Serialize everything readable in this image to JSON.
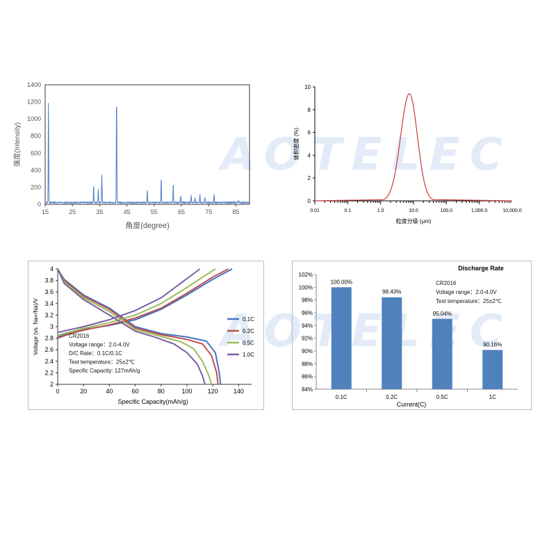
{
  "watermark": {
    "text": "AOTELEC"
  },
  "chart_data": [
    {
      "type": "line",
      "subtype": "xrd",
      "title": "",
      "xlabel": "",
      "ylabel": "",
      "xlabel_text": "角度(degree)",
      "ylabel_text": "强度(Intensity)",
      "xlim": [
        15,
        90
      ],
      "ylim": [
        0,
        1400
      ],
      "xticks": [
        15,
        25,
        35,
        45,
        55,
        65,
        75,
        85
      ],
      "yticks": [
        0,
        200,
        400,
        600,
        800,
        1000,
        1200,
        1400
      ],
      "color": "#4a7cc4",
      "baseline": 15,
      "peaks": [
        {
          "x": 16.2,
          "y": 1170
        },
        {
          "x": 32.8,
          "y": 210
        },
        {
          "x": 34.5,
          "y": 160
        },
        {
          "x": 35.8,
          "y": 330
        },
        {
          "x": 41.2,
          "y": 1250
        },
        {
          "x": 52.5,
          "y": 145
        },
        {
          "x": 57.6,
          "y": 295
        },
        {
          "x": 62.0,
          "y": 225
        },
        {
          "x": 64.8,
          "y": 85
        },
        {
          "x": 68.6,
          "y": 90
        },
        {
          "x": 70.0,
          "y": 55
        },
        {
          "x": 71.8,
          "y": 100
        },
        {
          "x": 73.6,
          "y": 65
        },
        {
          "x": 77.0,
          "y": 100
        },
        {
          "x": 86.0,
          "y": 30
        }
      ]
    },
    {
      "type": "line",
      "subtype": "particle-size",
      "title": "",
      "xlabel": "",
      "ylabel": "",
      "xlabel_text": "粒度分级 (μm)",
      "ylabel_text": "体积密度 (%)",
      "xscale": "log",
      "xlim": [
        0.01,
        10000
      ],
      "ylim": [
        0,
        10
      ],
      "xtick_values": [
        0.01,
        0.1,
        1,
        10,
        100,
        1000,
        10000
      ],
      "xtick_labels": [
        "0.01",
        "0.1",
        "1.0",
        "10.0",
        "100.0",
        "1,000.0",
        "10,000.0"
      ],
      "yticks": [
        0,
        2,
        4,
        6,
        8,
        10
      ],
      "color": "#c83a3a",
      "peak_x": 7.5,
      "peak_y": 9.4,
      "start_x": 1.2,
      "end_x": 40
    },
    {
      "type": "line",
      "subtype": "charge-discharge",
      "title": "",
      "xlabel": "Specific Capacity(mAh/g)",
      "ylabel": "Voltage (vs. Na+/Na)/V",
      "xlim": [
        0,
        150
      ],
      "ylim": [
        2,
        4
      ],
      "xticks": [
        0,
        20,
        40,
        60,
        80,
        100,
        120,
        140
      ],
      "yticks": [
        "2",
        "2.2",
        "2.4",
        "2.6",
        "2.8",
        "3",
        "3.2",
        "3.4",
        "3.6",
        "3.8",
        "4"
      ],
      "legend_position": "right",
      "annotations": [
        "CR2016",
        "Voltage range：2.0-4.0V",
        "D/C Rate：0.1C/0.1C",
        "Test temperature：25±2℃",
        "Specific Capacity: 127mAh/g"
      ],
      "series": [
        {
          "name": "0.1C",
          "color": "#4472c4",
          "charge": [
            [
              0,
              2.82
            ],
            [
              10,
              2.9
            ],
            [
              20,
              2.95
            ],
            [
              40,
              3.02
            ],
            [
              60,
              3.12
            ],
            [
              80,
              3.3
            ],
            [
              100,
              3.55
            ],
            [
              120,
              3.82
            ],
            [
              135,
              4.0
            ]
          ],
          "discharge": [
            [
              0,
              4.0
            ],
            [
              5,
              3.82
            ],
            [
              20,
              3.55
            ],
            [
              40,
              3.32
            ],
            [
              60,
              3.0
            ],
            [
              80,
              2.88
            ],
            [
              100,
              2.82
            ],
            [
              115,
              2.75
            ],
            [
              122,
              2.55
            ],
            [
              125,
              2.2
            ],
            [
              126,
              2.0
            ]
          ]
        },
        {
          "name": "0.2C",
          "color": "#c0504d",
          "charge": [
            [
              0,
              2.8
            ],
            [
              10,
              2.88
            ],
            [
              20,
              2.94
            ],
            [
              40,
              3.03
            ],
            [
              60,
              3.15
            ],
            [
              80,
              3.32
            ],
            [
              100,
              3.58
            ],
            [
              120,
              3.86
            ],
            [
              132,
              4.0
            ]
          ],
          "discharge": [
            [
              0,
              4.0
            ],
            [
              5,
              3.8
            ],
            [
              20,
              3.53
            ],
            [
              40,
              3.3
            ],
            [
              60,
              2.98
            ],
            [
              80,
              2.86
            ],
            [
              100,
              2.78
            ],
            [
              112,
              2.7
            ],
            [
              119,
              2.5
            ],
            [
              123,
              2.2
            ],
            [
              124,
              2.0
            ]
          ]
        },
        {
          "name": "0.5C",
          "color": "#9bbb59",
          "charge": [
            [
              0,
              2.85
            ],
            [
              10,
              2.91
            ],
            [
              20,
              2.97
            ],
            [
              40,
              3.07
            ],
            [
              60,
              3.2
            ],
            [
              80,
              3.4
            ],
            [
              100,
              3.68
            ],
            [
              115,
              3.9
            ],
            [
              122,
              4.0
            ]
          ],
          "discharge": [
            [
              0,
              4.0
            ],
            [
              5,
              3.78
            ],
            [
              20,
              3.5
            ],
            [
              40,
              3.26
            ],
            [
              60,
              2.95
            ],
            [
              80,
              2.83
            ],
            [
              95,
              2.74
            ],
            [
              105,
              2.62
            ],
            [
              112,
              2.4
            ],
            [
              117,
              2.15
            ],
            [
              119,
              2.0
            ]
          ]
        },
        {
          "name": "1.0C",
          "color": "#7b5ea7",
          "charge": [
            [
              0,
              2.9
            ],
            [
              10,
              2.95
            ],
            [
              20,
              3.0
            ],
            [
              40,
              3.12
            ],
            [
              60,
              3.28
            ],
            [
              80,
              3.5
            ],
            [
              95,
              3.75
            ],
            [
              110,
              4.0
            ]
          ],
          "discharge": [
            [
              0,
              4.0
            ],
            [
              5,
              3.75
            ],
            [
              20,
              3.47
            ],
            [
              40,
              3.2
            ],
            [
              60,
              2.92
            ],
            [
              75,
              2.82
            ],
            [
              90,
              2.7
            ],
            [
              100,
              2.55
            ],
            [
              108,
              2.35
            ],
            [
              112,
              2.15
            ],
            [
              114,
              2.0
            ]
          ]
        }
      ]
    },
    {
      "type": "bar",
      "title": "Discharge Rate",
      "xlabel": "Current(C)",
      "ylabel": "",
      "categories": [
        "0.1C",
        "0.2C",
        "0.5C",
        "1C"
      ],
      "values": [
        100.0,
        98.43,
        95.04,
        90.16
      ],
      "value_labels": [
        "100.00%",
        "98.43%",
        "95.04%",
        "90.16%"
      ],
      "ylim": [
        84,
        102
      ],
      "yticks": [
        "84%",
        "86%",
        "88%",
        "90%",
        "92%",
        "94%",
        "96%",
        "98%",
        "100%",
        "102%"
      ],
      "color": "#4f81bd",
      "annotations": [
        "CR2016",
        "Voltage range：2.0-4.0V",
        "Test temperature：25±2℃"
      ]
    }
  ]
}
